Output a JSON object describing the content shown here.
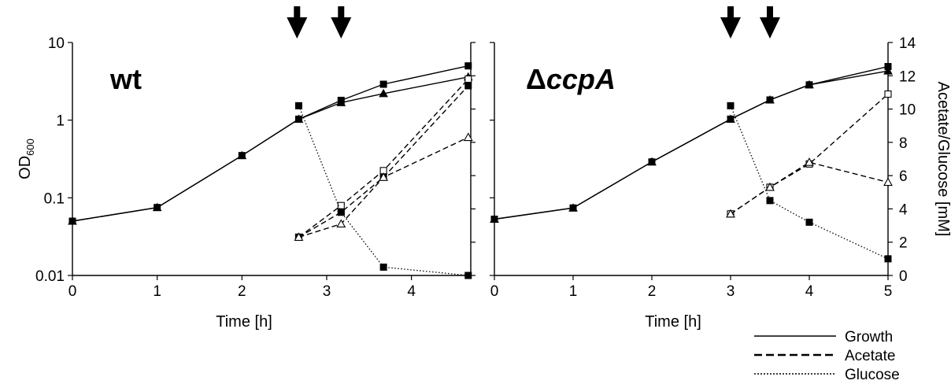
{
  "chart_data": [
    {
      "type": "line",
      "panel_label": "wt",
      "xlabel": "Time [h]",
      "ylabel_left": "OD",
      "ylabel_left_sub": "600",
      "ylabel_right": "",
      "yscale_left": "log",
      "ylim_left": [
        0.01,
        10
      ],
      "ylim_right": [
        0,
        14
      ],
      "xlim": [
        0,
        4.7
      ],
      "x_ticks": [
        0,
        1,
        2,
        3,
        4
      ],
      "y_ticks_left": [
        "0.01",
        "0.1",
        "1",
        "10"
      ],
      "y_ticks_right": [],
      "arrows_at": [
        2.65,
        3.17
      ],
      "series": [
        {
          "name": "Growth",
          "marker": "filled-square",
          "style": "solid",
          "axis": "left",
          "x": [
            0,
            1,
            2,
            2.67,
            3.17,
            3.67,
            4.67
          ],
          "y": [
            0.05,
            0.075,
            0.35,
            1.03,
            1.8,
            2.9,
            5.0
          ]
        },
        {
          "name": "",
          "marker": "filled-triangle",
          "style": "solid",
          "axis": "left",
          "x": [
            0,
            1,
            2,
            2.67,
            3.17,
            3.67,
            4.67
          ],
          "y": [
            0.05,
            0.075,
            0.35,
            1.03,
            1.68,
            2.2,
            3.6
          ]
        },
        {
          "name": "Acetate",
          "marker": "open-square",
          "style": "dashed",
          "axis": "right",
          "x": [
            2.67,
            3.17,
            3.67,
            4.67
          ],
          "y": [
            2.3,
            4.2,
            6.3,
            11.8
          ]
        },
        {
          "name": "",
          "marker": "filled-square",
          "style": "dashed",
          "axis": "right",
          "x": [
            2.67,
            3.17,
            3.67,
            4.67
          ],
          "y": [
            2.3,
            3.8,
            5.9,
            11.4
          ]
        },
        {
          "name": "",
          "marker": "open-triangle",
          "style": "dashed",
          "axis": "right",
          "x": [
            2.67,
            3.17,
            3.67,
            4.67
          ],
          "y": [
            2.3,
            3.1,
            5.9,
            8.3
          ]
        },
        {
          "name": "Glucose",
          "marker": "filled-square",
          "style": "dotted",
          "axis": "right",
          "x": [
            2.67,
            3.17,
            3.67,
            4.67
          ],
          "y": [
            10.2,
            3.8,
            0.5,
            0.0
          ]
        }
      ]
    },
    {
      "type": "line",
      "panel_label_prefix": "Δ",
      "panel_label_italic": "ccpA",
      "xlabel": "Time [h]",
      "ylabel_left": "",
      "ylabel_left_sub": "",
      "ylabel_right": "Acetate/Glucose [mM]",
      "yscale_left": "log",
      "ylim_left": [
        0.01,
        10
      ],
      "ylim_right": [
        0,
        14
      ],
      "xlim": [
        0,
        5
      ],
      "x_ticks": [
        0,
        1,
        2,
        3,
        4,
        5
      ],
      "y_ticks_left": [],
      "y_ticks_right": [
        "0",
        "2",
        "4",
        "6",
        "8",
        "10",
        "12",
        "14"
      ],
      "arrows_at": [
        3,
        3.5
      ],
      "series": [
        {
          "name": "Growth",
          "marker": "filled-square",
          "style": "solid",
          "axis": "left",
          "x": [
            0,
            1,
            2,
            3,
            3.5,
            4,
            5
          ],
          "y": [
            0.053,
            0.074,
            0.29,
            1.03,
            1.82,
            2.85,
            4.9
          ]
        },
        {
          "name": "",
          "marker": "filled-triangle",
          "style": "solid",
          "axis": "left",
          "x": [
            0,
            1,
            2,
            3,
            3.5,
            4,
            5
          ],
          "y": [
            0.053,
            0.074,
            0.29,
            1.03,
            1.82,
            2.85,
            4.3
          ]
        },
        {
          "name": "Acetate",
          "marker": "open-square",
          "style": "dashed",
          "axis": "right",
          "x": [
            3,
            3.5,
            4,
            5
          ],
          "y": [
            3.7,
            5.3,
            6.7,
            10.9
          ]
        },
        {
          "name": "",
          "marker": "open-triangle",
          "style": "dashed",
          "axis": "right",
          "x": [
            3,
            3.5,
            4,
            5
          ],
          "y": [
            3.7,
            5.3,
            6.8,
            5.6
          ]
        },
        {
          "name": "Glucose",
          "marker": "filled-square",
          "style": "dotted",
          "axis": "right",
          "x": [
            3,
            3.5,
            4,
            5
          ],
          "y": [
            10.2,
            4.5,
            3.2,
            1.0
          ]
        }
      ]
    }
  ],
  "legend": {
    "placement": "bottom-right",
    "items": [
      {
        "label": "Growth",
        "style": "solid"
      },
      {
        "label": "Acetate",
        "style": "dashed"
      },
      {
        "label": "Glucose",
        "style": "dotted"
      }
    ]
  }
}
